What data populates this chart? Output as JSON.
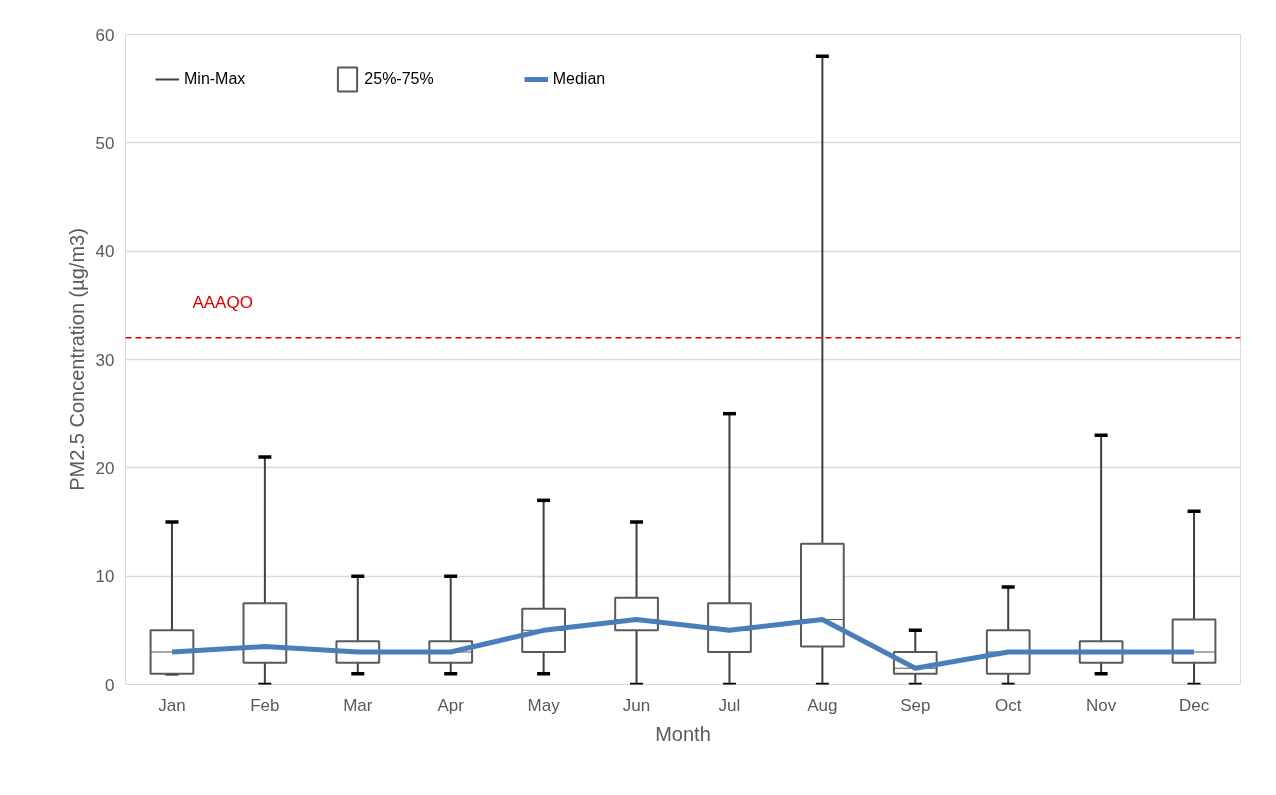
{
  "chart_data": {
    "type": "box",
    "xlabel": "Month",
    "ylabel": "PM2.5 Concentration (µg/m3)",
    "categories": [
      "Jan",
      "Feb",
      "Mar",
      "Apr",
      "May",
      "Jun",
      "Jul",
      "Aug",
      "Sep",
      "Oct",
      "Nov",
      "Dec"
    ],
    "series": [
      {
        "name": "25%-75%",
        "color": "#ffffff",
        "boxes": [
          {
            "low": 1,
            "q1": 1,
            "median": 3,
            "q3": 5,
            "high": 15
          },
          {
            "low": 0,
            "q1": 2,
            "median": 3.5,
            "q3": 7.5,
            "high": 21
          },
          {
            "low": 1,
            "q1": 2,
            "median": 3,
            "q3": 4,
            "high": 10
          },
          {
            "low": 1,
            "q1": 2,
            "median": 3,
            "q3": 4,
            "high": 10
          },
          {
            "low": 1,
            "q1": 3,
            "median": 5,
            "q3": 7,
            "high": 17
          },
          {
            "low": 0,
            "q1": 5,
            "median": 6,
            "q3": 8,
            "high": 15
          },
          {
            "low": 0,
            "q1": 3,
            "median": 5,
            "q3": 7.5,
            "high": 25
          },
          {
            "low": 0,
            "q1": 3.5,
            "median": 6,
            "q3": 13,
            "high": 58
          },
          {
            "low": 0,
            "q1": 1,
            "median": 1.5,
            "q3": 3,
            "high": 5
          },
          {
            "low": 0,
            "q1": 1,
            "median": 3,
            "q3": 5,
            "high": 9
          },
          {
            "low": 1,
            "q1": 2,
            "median": 3,
            "q3": 4,
            "high": 23
          },
          {
            "low": 0,
            "q1": 2,
            "median": 3,
            "q3": 6,
            "high": 16
          }
        ]
      },
      {
        "name": "Median",
        "type": "line",
        "color": "#4a7ebb",
        "values": [
          3,
          3.5,
          3,
          3,
          5,
          6,
          5,
          6,
          1.5,
          3,
          3,
          3
        ]
      }
    ],
    "annotations": [
      "Min-Max"
    ],
    "ref_lines": [
      {
        "axis": "y",
        "value": 32,
        "label": "AAAQO",
        "color": "#e00000",
        "line_style": "dashed"
      }
    ],
    "ylim": [
      0,
      60
    ],
    "yticks": [
      0,
      10,
      20,
      30,
      40,
      50,
      60
    ],
    "grid": "y",
    "legend": "top left"
  }
}
